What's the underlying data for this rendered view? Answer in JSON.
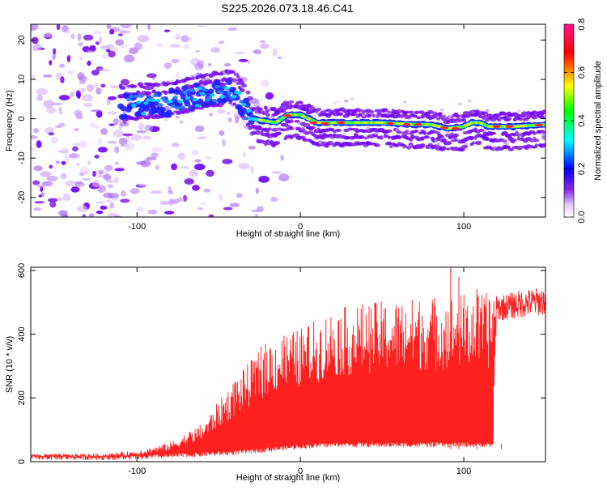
{
  "chart_data": [
    {
      "type": "heatmap",
      "title": "S225.2026.073.18.46.C41",
      "xlabel": "Height of straight line (km)",
      "ylabel": "Frequency (Hz)",
      "xlim": [
        -165,
        150
      ],
      "ylim": [
        -25,
        24
      ],
      "xticks": [
        -100,
        0,
        100
      ],
      "yticks": [
        -20,
        -10,
        0,
        10,
        20
      ],
      "colorbar": {
        "label": "Normalized spectral amplitude",
        "range": [
          0,
          0.8
        ],
        "ticks": [
          "0.0",
          "0.2",
          "0.4",
          "0.6",
          "0.8"
        ],
        "colors": [
          "#ffffff",
          "#e6ccff",
          "#8a2be2",
          "#0000ff",
          "#00ffff",
          "#00ff00",
          "#ffff00",
          "#ff0000",
          "#ff1493"
        ]
      },
      "ridge": {
        "description_points_km_hz": [
          [
            -110,
            3
          ],
          [
            -80,
            4
          ],
          [
            -60,
            6
          ],
          [
            -40,
            7
          ],
          [
            -30,
            0
          ],
          [
            -15,
            -1
          ],
          [
            -8,
            1
          ],
          [
            0,
            1
          ],
          [
            10,
            -1
          ],
          [
            30,
            -1
          ],
          [
            50,
            -1
          ],
          [
            70,
            -1.5
          ],
          [
            80,
            -1.5
          ],
          [
            85,
            -2
          ],
          [
            90,
            -2.5
          ],
          [
            100,
            -2
          ],
          [
            105,
            -1
          ],
          [
            110,
            -1
          ],
          [
            115,
            -2
          ],
          [
            130,
            -2
          ],
          [
            150,
            -1.5
          ]
        ]
      },
      "noise_region_km": [
        -165,
        -30
      ]
    },
    {
      "type": "line",
      "xlabel": "Height of straight line (km)",
      "ylabel": "SNR (10 * v/v)",
      "xlim": [
        -165,
        150
      ],
      "ylim": [
        0,
        610
      ],
      "xticks": [
        -100,
        0,
        100
      ],
      "yticks": [
        0,
        200,
        400,
        600
      ],
      "color": "#ff2020",
      "envelope": [
        {
          "x": -165,
          "lo": 5,
          "hi": 25
        },
        {
          "x": -120,
          "lo": 5,
          "hi": 25
        },
        {
          "x": -100,
          "lo": 5,
          "hi": 35
        },
        {
          "x": -80,
          "lo": 10,
          "hi": 60
        },
        {
          "x": -60,
          "lo": 15,
          "hi": 120
        },
        {
          "x": -40,
          "lo": 20,
          "hi": 260
        },
        {
          "x": -20,
          "lo": 30,
          "hi": 380
        },
        {
          "x": 0,
          "lo": 40,
          "hi": 420
        },
        {
          "x": 20,
          "lo": 45,
          "hi": 480
        },
        {
          "x": 40,
          "lo": 45,
          "hi": 500
        },
        {
          "x": 60,
          "lo": 45,
          "hi": 510
        },
        {
          "x": 80,
          "lo": 45,
          "hi": 520
        },
        {
          "x": 100,
          "lo": 45,
          "hi": 530
        },
        {
          "x": 118,
          "lo": 45,
          "hi": 530
        },
        {
          "x": 120,
          "lo": 440,
          "hi": 520
        },
        {
          "x": 135,
          "lo": 450,
          "hi": 540
        },
        {
          "x": 150,
          "lo": 460,
          "hi": 550
        }
      ]
    }
  ]
}
